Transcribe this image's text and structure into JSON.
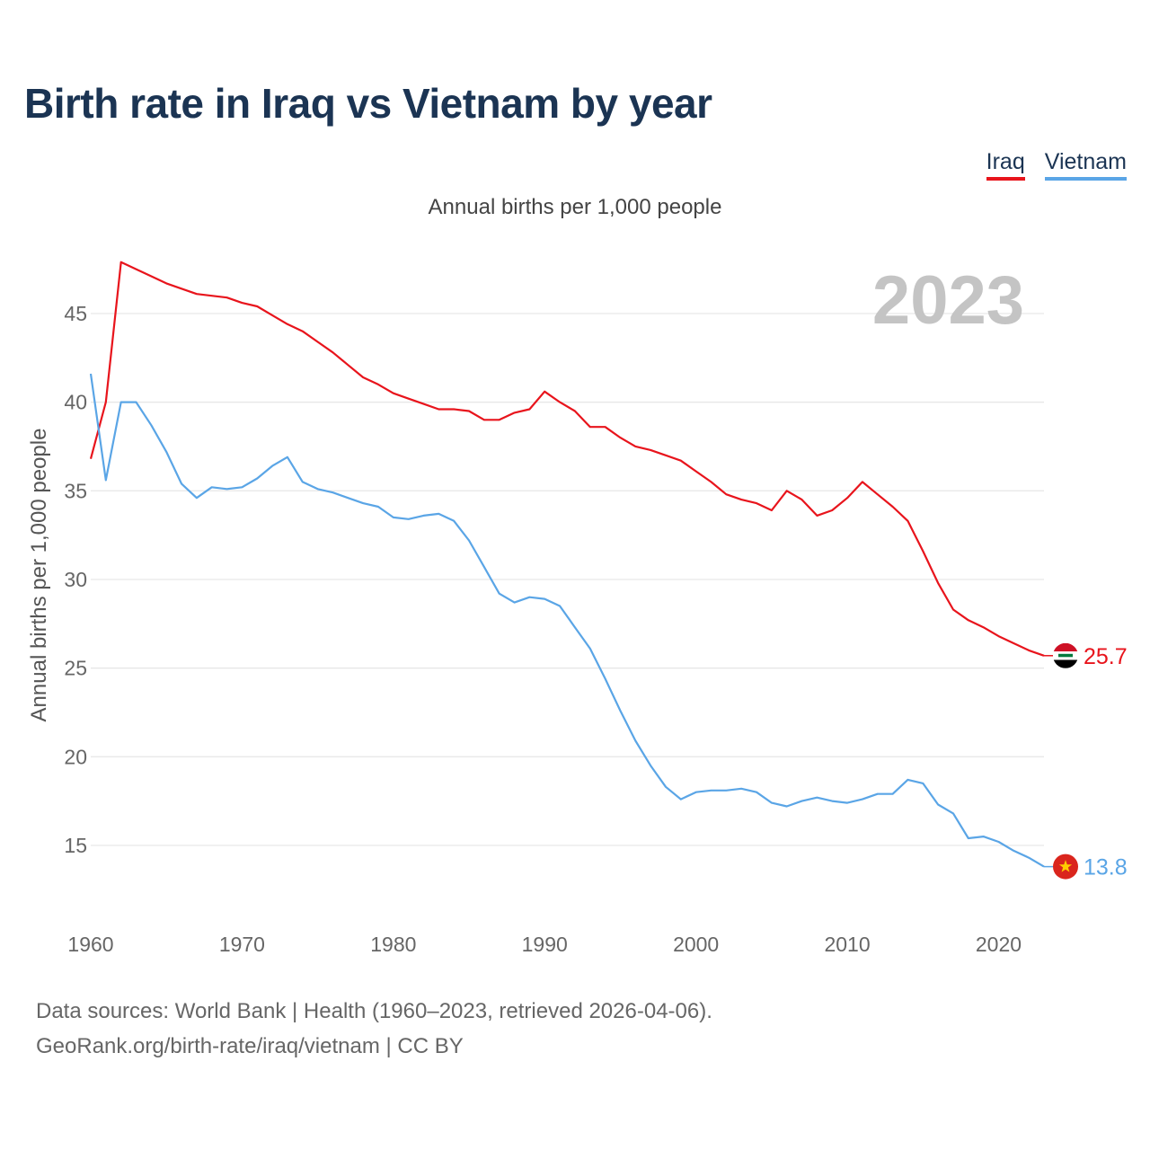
{
  "title": "Birth rate in Iraq vs Vietnam by year",
  "legend": [
    {
      "name": "Iraq",
      "color": "#e8141c"
    },
    {
      "name": "Vietnam",
      "color": "#5aa5e6"
    }
  ],
  "subtitle": "Annual births per 1,000 people",
  "year_label": "2023",
  "footer": {
    "line1": "Data sources: World Bank | Health (1960–2023, retrieved 2026-04-06).",
    "line2": "GeoRank.org/birth-rate/iraq/vietnam | CC BY"
  },
  "chart_data": {
    "type": "line",
    "title": "Birth rate in Iraq vs Vietnam by year",
    "xlabel": "",
    "ylabel": "Annual births per 1,000 people",
    "xlim": [
      1960,
      2023
    ],
    "ylim": [
      11.5,
      49
    ],
    "x_ticks": [
      1960,
      1970,
      1980,
      1990,
      2000,
      2010,
      2020
    ],
    "y_ticks": [
      15,
      20,
      25,
      30,
      35,
      40,
      45
    ],
    "grid": true,
    "x": [
      1960,
      1961,
      1962,
      1963,
      1964,
      1965,
      1966,
      1967,
      1968,
      1969,
      1970,
      1971,
      1972,
      1973,
      1974,
      1975,
      1976,
      1977,
      1978,
      1979,
      1980,
      1981,
      1982,
      1983,
      1984,
      1985,
      1986,
      1987,
      1988,
      1989,
      1990,
      1991,
      1992,
      1993,
      1994,
      1995,
      1996,
      1997,
      1998,
      1999,
      2000,
      2001,
      2002,
      2003,
      2004,
      2005,
      2006,
      2007,
      2008,
      2009,
      2010,
      2011,
      2012,
      2013,
      2014,
      2015,
      2016,
      2017,
      2018,
      2019,
      2020,
      2021,
      2022,
      2023
    ],
    "series": [
      {
        "name": "Iraq",
        "color": "#e8141c",
        "end_label": "25.7",
        "values": [
          36.8,
          40.0,
          47.9,
          47.5,
          47.1,
          46.7,
          46.4,
          46.1,
          46.0,
          45.9,
          45.6,
          45.4,
          44.9,
          44.4,
          44.0,
          43.4,
          42.8,
          42.1,
          41.4,
          41.0,
          40.5,
          40.2,
          39.9,
          39.6,
          39.6,
          39.5,
          39.0,
          39.0,
          39.4,
          39.6,
          40.6,
          40.0,
          39.5,
          38.6,
          38.6,
          38.0,
          37.5,
          37.3,
          37.0,
          36.7,
          36.1,
          35.5,
          34.8,
          34.5,
          34.3,
          33.9,
          35.0,
          34.5,
          33.6,
          33.9,
          34.6,
          35.5,
          34.8,
          34.1,
          33.3,
          31.6,
          29.8,
          28.3,
          27.7,
          27.3,
          26.8,
          26.4,
          26.0,
          25.7
        ]
      },
      {
        "name": "Vietnam",
        "color": "#5aa5e6",
        "end_label": "13.8",
        "values": [
          41.6,
          35.6,
          40.0,
          40.0,
          38.7,
          37.2,
          35.4,
          34.6,
          35.2,
          35.1,
          35.2,
          35.7,
          36.4,
          36.9,
          35.5,
          35.1,
          34.9,
          34.6,
          34.3,
          34.1,
          33.5,
          33.4,
          33.6,
          33.7,
          33.3,
          32.2,
          30.7,
          29.2,
          28.7,
          29.0,
          28.9,
          28.5,
          27.3,
          26.1,
          24.4,
          22.6,
          20.9,
          19.5,
          18.3,
          17.6,
          18.0,
          18.1,
          18.1,
          18.2,
          18.0,
          17.4,
          17.2,
          17.5,
          17.7,
          17.5,
          17.4,
          17.6,
          17.9,
          17.9,
          18.7,
          18.5,
          17.3,
          16.8,
          15.4,
          15.5,
          15.2,
          14.7,
          14.3,
          13.8
        ]
      }
    ]
  }
}
